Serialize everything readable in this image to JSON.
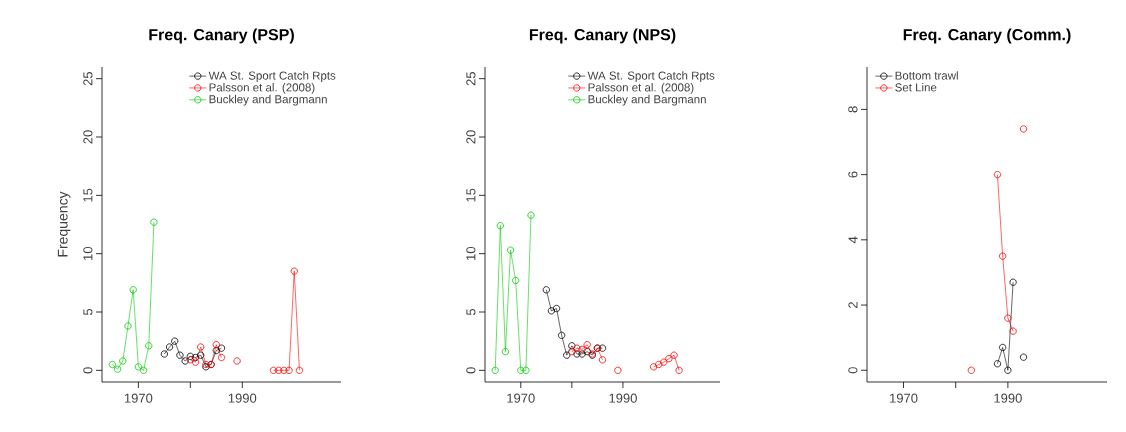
{
  "chart_data": [
    {
      "type": "line",
      "title": "Freq. Canary (PSP)",
      "ylabel": "Frequency",
      "xlim": [
        1963,
        2009
      ],
      "ylim": [
        -1,
        26
      ],
      "xticks": [
        1970,
        1990
      ],
      "yticks": [
        0,
        5,
        10,
        15,
        20,
        25
      ],
      "legend": "top right",
      "marker": "circle",
      "series": [
        {
          "name": "WA St. Sport Catch Rpts",
          "color": "#000000",
          "x": [
            1975,
            1976,
            1977,
            1978,
            1979,
            1980,
            1981,
            1982,
            1983,
            1984,
            1985,
            1986
          ],
          "values": [
            1.4,
            2.0,
            2.5,
            1.3,
            0.8,
            1.2,
            1.1,
            1.3,
            0.3,
            0.5,
            1.7,
            1.9
          ]
        },
        {
          "name": "Palsson et al. (2008)",
          "color": "#ff0000",
          "x": [
            1980,
            1981,
            1982,
            1983,
            1984,
            1985,
            1986,
            1987,
            1989,
            1990,
            1996,
            1997,
            1998,
            1999,
            2000,
            2001
          ],
          "values": [
            0.9,
            0.7,
            2.0,
            0.5,
            0.5,
            2.2,
            1.1,
            null,
            0.8,
            null,
            0,
            0,
            0,
            0,
            8.5,
            0
          ]
        },
        {
          "name": "Buckley and Bargmann",
          "color": "#00cd00",
          "x": [
            1965,
            1966,
            1967,
            1968,
            1969,
            1970,
            1971,
            1972,
            1973
          ],
          "values": [
            0.5,
            0.1,
            0.8,
            3.8,
            6.9,
            0.3,
            0.0,
            2.1,
            12.7
          ]
        }
      ]
    },
    {
      "type": "line",
      "title": "Freq. Canary (NPS)",
      "xlim": [
        1963,
        2009
      ],
      "ylim": [
        -1,
        26
      ],
      "xticks": [
        1970,
        1990
      ],
      "yticks": [
        0,
        5,
        10,
        15,
        20,
        25
      ],
      "legend": "top right",
      "marker": "circle",
      "series": [
        {
          "name": "WA St. Sport Catch Rpts",
          "color": "#000000",
          "x": [
            1975,
            1976,
            1977,
            1978,
            1979,
            1980,
            1981,
            1982,
            1983,
            1984,
            1985,
            1986
          ],
          "values": [
            6.9,
            5.1,
            5.3,
            3.0,
            1.3,
            2.1,
            1.4,
            1.4,
            1.6,
            1.3,
            1.9,
            1.9
          ]
        },
        {
          "name": "Palsson et al. (2008)",
          "color": "#ff0000",
          "x": [
            1980,
            1981,
            1982,
            1983,
            1984,
            1985,
            1986,
            1987,
            1989,
            1990,
            1996,
            1997,
            1998,
            1999,
            2000,
            2001
          ],
          "values": [
            1.6,
            1.9,
            1.8,
            2.2,
            1.4,
            1.9,
            0.9,
            null,
            0,
            null,
            0.3,
            0.5,
            0.7,
            1.0,
            1.3,
            0
          ]
        },
        {
          "name": "Buckley and Bargmann",
          "color": "#00cd00",
          "x": [
            1965,
            1966,
            1967,
            1968,
            1969,
            1970,
            1971,
            1972
          ],
          "values": [
            0,
            12.4,
            1.6,
            10.3,
            7.7,
            0,
            0,
            13.3
          ]
        }
      ]
    },
    {
      "type": "line",
      "title": "Freq. Canary (Comm.)",
      "xlim": [
        1963,
        2009
      ],
      "ylim": [
        -0.36,
        9.3
      ],
      "xticks": [
        1970,
        1990
      ],
      "yticks": [
        0,
        2,
        4,
        6,
        8
      ],
      "legend": "top left",
      "marker": "circle",
      "series": [
        {
          "name": "Bottom trawl",
          "color": "#000000",
          "x": [
            1988,
            1989,
            1990,
            1991,
            1992,
            1993
          ],
          "values": [
            0.2,
            0.7,
            0,
            2.7,
            null,
            0.4
          ]
        },
        {
          "name": "Set Line",
          "color": "#ff0000",
          "x": [
            1983,
            1984,
            1988,
            1989,
            1990,
            1991,
            1992,
            1993
          ],
          "values": [
            0,
            null,
            6.0,
            3.5,
            1.6,
            1.2,
            null,
            7.4
          ]
        }
      ]
    }
  ]
}
